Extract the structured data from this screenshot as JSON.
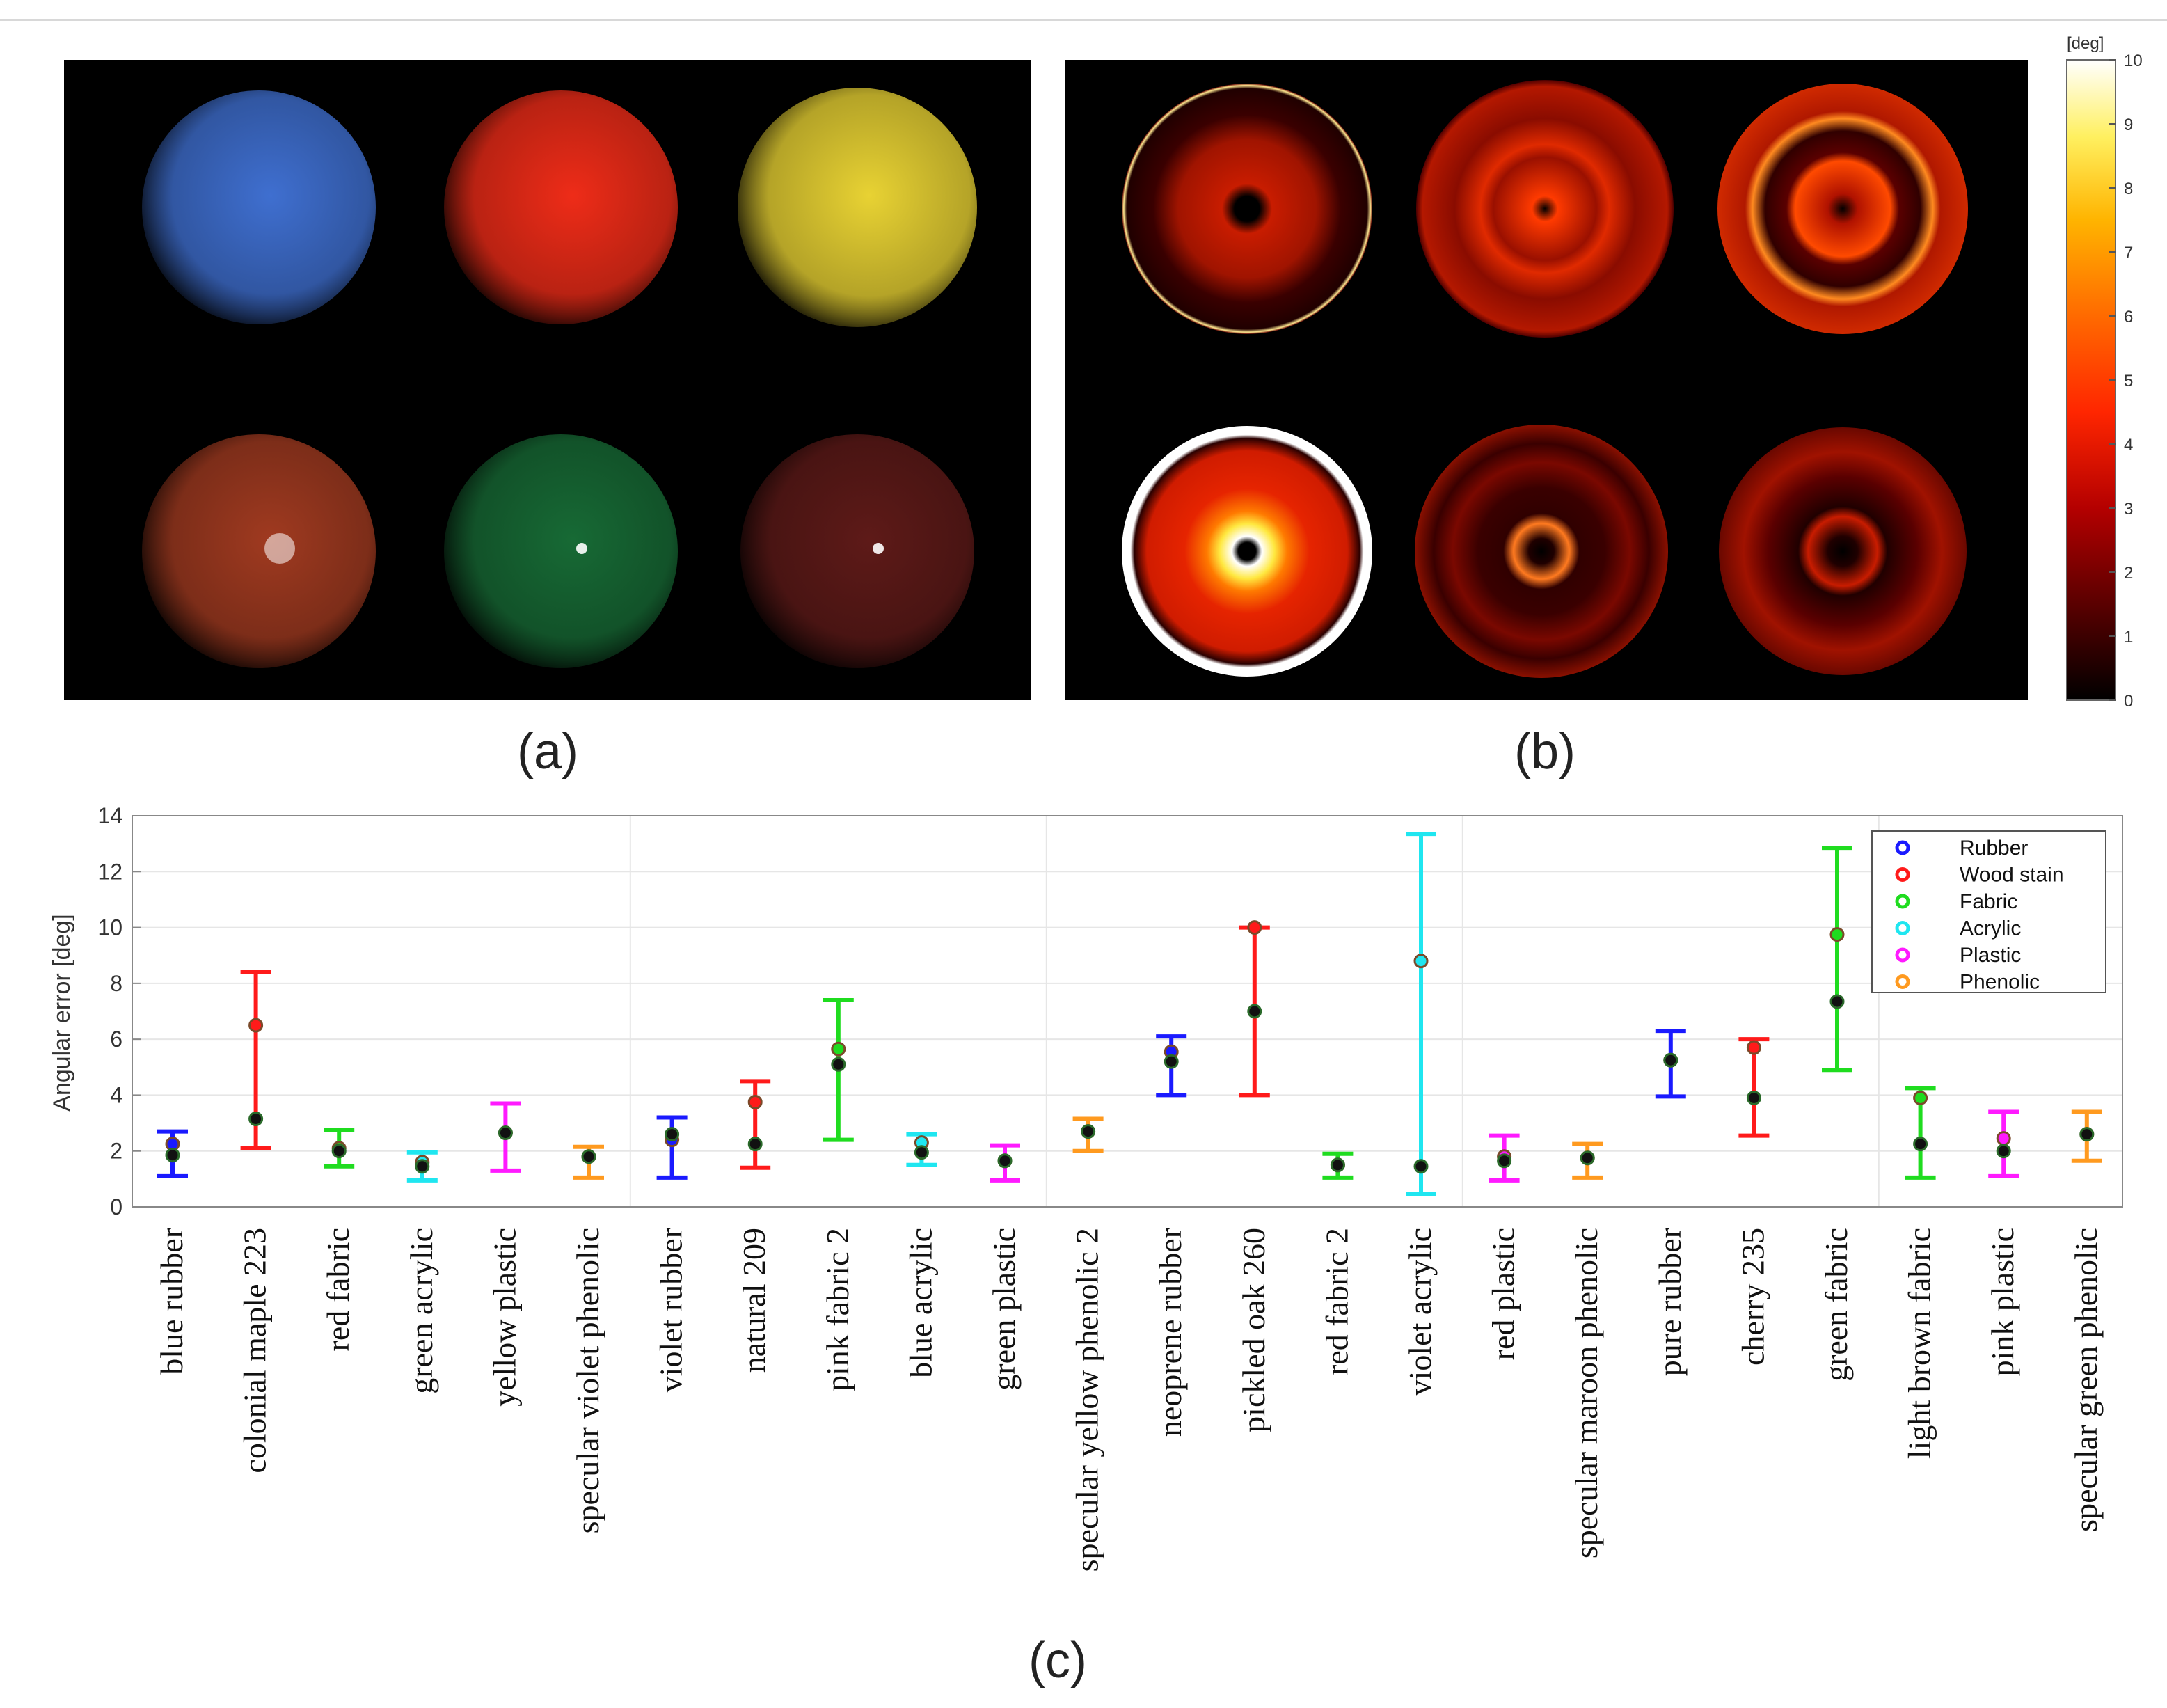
{
  "panels": {
    "a": "(a)",
    "b": "(b)",
    "c": "(c)"
  },
  "colorbar": {
    "unit": "[deg]",
    "ticks": [
      0,
      1,
      2,
      3,
      4,
      5,
      6,
      7,
      8,
      9,
      10
    ]
  },
  "spheres_a": [
    {
      "name": "blue-sphere",
      "color": "#3f6fd0"
    },
    {
      "name": "red-sphere",
      "color": "#ee2c18"
    },
    {
      "name": "yellow-sphere",
      "color": "#e8d233"
    },
    {
      "name": "brown-sphere",
      "color": "#a03a20"
    },
    {
      "name": "green-sphere",
      "color": "#176a35"
    },
    {
      "name": "maroon-sphere",
      "color": "#5e1a18"
    }
  ],
  "chart_data": {
    "type": "errorbar",
    "title": "",
    "xlabel": "",
    "ylabel": "Angular error [deg]",
    "ylim": [
      0,
      14
    ],
    "yticks": [
      0,
      2,
      4,
      6,
      8,
      10,
      12,
      14
    ],
    "grid": true,
    "legend_position": "top-right",
    "legend": [
      {
        "name": "Rubber",
        "color": "#1a1aff"
      },
      {
        "name": "Wood stain",
        "color": "#ff1a1a"
      },
      {
        "name": "Fabric",
        "color": "#1fdc1f"
      },
      {
        "name": "Acrylic",
        "color": "#1fe6f0"
      },
      {
        "name": "Plastic",
        "color": "#ff1aff"
      },
      {
        "name": "Phenolic",
        "color": "#ff9a1f"
      }
    ],
    "points": [
      {
        "label": "blue rubber",
        "group": "Rubber",
        "low": 1.1,
        "high": 2.7,
        "median": 1.85,
        "mean": 2.25
      },
      {
        "label": "colonial maple 223",
        "group": "Wood stain",
        "low": 2.1,
        "high": 8.4,
        "median": 3.15,
        "mean": 6.5
      },
      {
        "label": "red fabric",
        "group": "Fabric",
        "low": 1.45,
        "high": 2.75,
        "median": 2.0,
        "mean": 2.1
      },
      {
        "label": "green acrylic",
        "group": "Acrylic",
        "low": 0.95,
        "high": 1.95,
        "median": 1.45,
        "mean": 1.6
      },
      {
        "label": "yellow plastic",
        "group": "Plastic",
        "low": 1.3,
        "high": 3.7,
        "median": 2.65,
        "mean": 2.65
      },
      {
        "label": "specular violet phenolic",
        "group": "Phenolic",
        "low": 1.05,
        "high": 2.15,
        "median": 1.8,
        "mean": 1.8
      },
      {
        "label": "violet rubber",
        "group": "Rubber",
        "low": 1.05,
        "high": 3.2,
        "median": 2.6,
        "mean": 2.4
      },
      {
        "label": "natural 209",
        "group": "Wood stain",
        "low": 1.4,
        "high": 4.5,
        "median": 2.25,
        "mean": 3.75
      },
      {
        "label": "pink fabric 2",
        "group": "Fabric",
        "low": 2.4,
        "high": 7.4,
        "median": 5.1,
        "mean": 5.65
      },
      {
        "label": "blue acrylic",
        "group": "Acrylic",
        "low": 1.5,
        "high": 2.6,
        "median": 1.95,
        "mean": 2.3
      },
      {
        "label": "green plastic",
        "group": "Plastic",
        "low": 0.95,
        "high": 2.2,
        "median": 1.65,
        "mean": 1.65
      },
      {
        "label": "specular yellow phenolic 2",
        "group": "Phenolic",
        "low": 2.0,
        "high": 3.15,
        "median": 2.7,
        "mean": 2.7
      },
      {
        "label": "neoprene rubber",
        "group": "Rubber",
        "low": 4.0,
        "high": 6.1,
        "median": 5.2,
        "mean": 5.55
      },
      {
        "label": "pickled oak 260",
        "group": "Wood stain",
        "low": 4.0,
        "high": 10.0,
        "median": 7.0,
        "mean": 10.0
      },
      {
        "label": "red fabric 2",
        "group": "Fabric",
        "low": 1.05,
        "high": 1.9,
        "median": 1.5,
        "mean": 1.5
      },
      {
        "label": "violet acrylic",
        "group": "Acrylic",
        "low": 0.45,
        "high": 13.35,
        "median": 1.45,
        "mean": 8.8
      },
      {
        "label": "red plastic",
        "group": "Plastic",
        "low": 0.95,
        "high": 2.55,
        "median": 1.65,
        "mean": 1.8
      },
      {
        "label": "specular maroon phenolic",
        "group": "Phenolic",
        "low": 1.05,
        "high": 2.25,
        "median": 1.75,
        "mean": 1.75
      },
      {
        "label": "pure rubber",
        "group": "Rubber",
        "low": 3.95,
        "high": 6.3,
        "median": 5.25,
        "mean": 5.25
      },
      {
        "label": "cherry 235",
        "group": "Wood stain",
        "low": 2.55,
        "high": 6.0,
        "median": 3.9,
        "mean": 5.7
      },
      {
        "label": "green fabric",
        "group": "Fabric",
        "low": 4.9,
        "high": 12.85,
        "median": 7.35,
        "mean": 9.75
      },
      {
        "label": "light brown fabric",
        "group": "Fabric",
        "low": 1.05,
        "high": 4.25,
        "median": 2.25,
        "mean": 3.9
      },
      {
        "label": "pink plastic",
        "group": "Plastic",
        "low": 1.1,
        "high": 3.4,
        "median": 2.0,
        "mean": 2.45
      },
      {
        "label": "specular green phenolic",
        "group": "Phenolic",
        "low": 1.65,
        "high": 3.4,
        "median": 2.6,
        "mean": 2.6
      }
    ]
  }
}
